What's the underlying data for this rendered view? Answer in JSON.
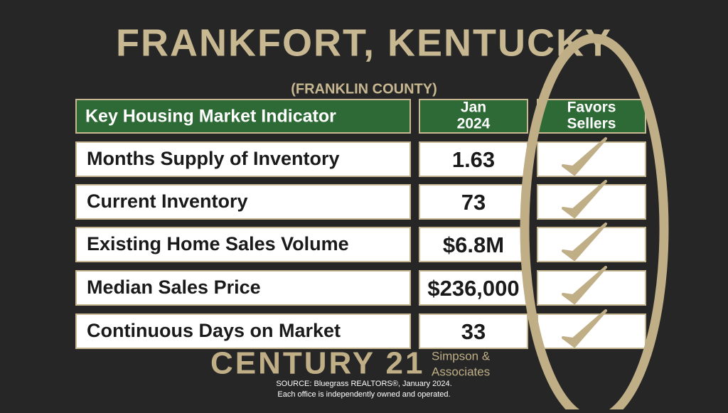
{
  "header": {
    "title": "FRANKFORT, KENTUCKY",
    "subtitle": "(FRANKLIN COUNTY)"
  },
  "table": {
    "columns": [
      "Key Housing Market Indicator",
      [
        "Jan",
        "2024"
      ],
      [
        "Favors",
        "Sellers"
      ]
    ],
    "rows": [
      [
        "Months Supply of Inventory",
        "1.63"
      ],
      [
        "Current Inventory",
        "73"
      ],
      [
        "Existing Home Sales Volume",
        "$6.8M"
      ],
      [
        "Median Sales Price",
        "$236,000"
      ],
      [
        "Continuous Days on Market",
        "33"
      ]
    ]
  },
  "footer": {
    "brand": "CENTURY 21",
    "office": [
      "Simpson &",
      "Associates"
    ],
    "source": "SOURCE: Bluegrass REALTORS®, January 2024.",
    "disclaimer": "Each office is independently owned and operated."
  }
}
